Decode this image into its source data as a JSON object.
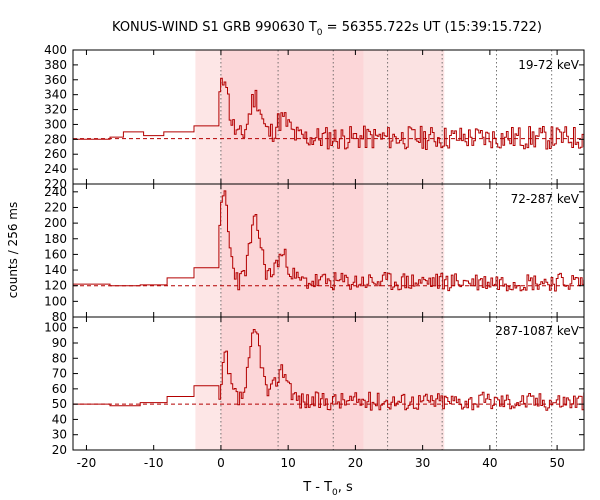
{
  "chart_data": {
    "type": "line",
    "title_main": "KONUS-WIND S1 GRB 990630 T",
    "title_sub": "0",
    "title_rest": " = 56355.722s UT (15:39:15.722)",
    "ylabel": "counts / 256 ms",
    "xlabel_main": "T - T",
    "xlabel_sub": "0",
    "xlabel_rest": ", s",
    "xlim": [
      -22,
      54
    ],
    "x_ticks": [
      -20,
      -10,
      0,
      10,
      20,
      30,
      40,
      50
    ],
    "shaded_regions": [
      {
        "x": [
          -3.8,
          33.2
        ],
        "color": "#fde6e6"
      },
      {
        "x": [
          0,
          21.2
        ],
        "color": "#fcd6d8"
      },
      {
        "x": [
          21.2,
          33.2
        ],
        "color": "#fbe2e2"
      }
    ],
    "dotted_lines": [
      0,
      8.5,
      16.7,
      24.8,
      32.9,
      41.0,
      49.2
    ],
    "panels": [
      {
        "label": "19-72 keV",
        "ylim": [
          220,
          400
        ],
        "y_ticks": [
          220,
          240,
          260,
          280,
          300,
          320,
          340,
          360,
          380,
          400
        ],
        "background": 281,
        "pre_steps": [
          {
            "x0": -22,
            "x1": -16.5,
            "y": 280
          },
          {
            "x0": -16.5,
            "x1": -14.5,
            "y": 283
          },
          {
            "x0": -14.5,
            "x1": -11.5,
            "y": 290
          },
          {
            "x0": -11.5,
            "x1": -8.5,
            "y": 285
          },
          {
            "x0": -8.5,
            "x1": -4,
            "y": 290
          },
          {
            "x0": -4,
            "x1": -0.3,
            "y": 298
          }
        ],
        "profile": {
          "base": 282,
          "peak": 375,
          "peak2": 55,
          "peak2_at": 5,
          "noise": 16,
          "seed": 11
        }
      },
      {
        "label": "72-287 keV",
        "ylim": [
          80,
          250
        ],
        "y_ticks": [
          80,
          100,
          120,
          140,
          160,
          180,
          200,
          220,
          240
        ],
        "background": 120,
        "pre_steps": [
          {
            "x0": -22,
            "x1": -16.5,
            "y": 122
          },
          {
            "x0": -16.5,
            "x1": -12,
            "y": 120
          },
          {
            "x0": -12,
            "x1": -8,
            "y": 121
          },
          {
            "x0": -8,
            "x1": -4,
            "y": 130
          },
          {
            "x0": -4,
            "x1": -0.3,
            "y": 143
          }
        ],
        "profile": {
          "base": 125,
          "peak": 242,
          "peak2": 75,
          "peak2_at": 5,
          "noise": 12,
          "seed": 23
        }
      },
      {
        "label": "287-1087 keV",
        "ylim": [
          20,
          107
        ],
        "y_ticks": [
          20,
          30,
          40,
          50,
          60,
          70,
          80,
          90,
          100
        ],
        "background": 50,
        "pre_steps": [
          {
            "x0": -22,
            "x1": -16.5,
            "y": 50
          },
          {
            "x0": -16.5,
            "x1": -12,
            "y": 49
          },
          {
            "x0": -12,
            "x1": -8,
            "y": 51
          },
          {
            "x0": -8,
            "x1": -4,
            "y": 55
          },
          {
            "x0": -4,
            "x1": -0.3,
            "y": 62
          }
        ],
        "profile": {
          "base": 52,
          "peak": 87,
          "peak2": 45,
          "peak2_at": 5,
          "noise": 6,
          "seed": 37
        }
      }
    ]
  },
  "colors": {
    "line": "#b30000",
    "background_line": "#b30000",
    "dotted": "#555555",
    "axis": "#000000"
  }
}
